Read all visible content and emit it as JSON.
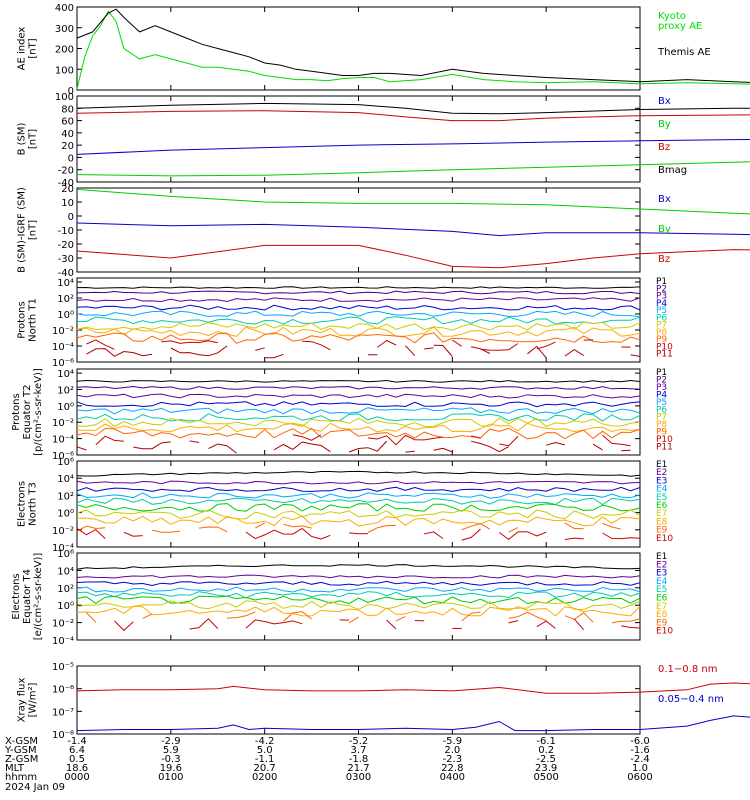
{
  "chart_data": [
    {
      "type": "line",
      "id": "ae",
      "ylabel": [
        "AE index",
        "[nT]"
      ],
      "ylim": [
        0,
        400
      ],
      "ticks": [
        0,
        100,
        200,
        300,
        400
      ],
      "tick_labels": [
        "0",
        "100",
        "200",
        "300",
        "400"
      ],
      "series": [
        {
          "name": "Kyoto proxy AE",
          "legend": [
            "Kyoto",
            "proxy AE"
          ],
          "color": "#00dd00",
          "x": [
            0,
            5,
            10,
            15,
            20,
            25,
            30,
            40,
            50,
            60,
            70,
            80,
            90,
            100,
            110,
            120,
            130,
            140,
            150,
            160,
            170,
            180,
            190,
            200,
            220,
            240,
            260,
            280,
            300,
            330,
            360,
            390,
            420,
            450,
            480,
            510,
            540,
            570,
            600
          ],
          "y": [
            5,
            160,
            260,
            310,
            380,
            330,
            200,
            150,
            170,
            150,
            130,
            110,
            110,
            100,
            90,
            70,
            60,
            50,
            50,
            45,
            55,
            60,
            60,
            40,
            50,
            75,
            50,
            40,
            35,
            40,
            30,
            35,
            30,
            25,
            30,
            35,
            30,
            40,
            25
          ]
        },
        {
          "name": "Themis AE",
          "legend": [
            "Themis AE"
          ],
          "color": "#000000",
          "x": [
            0,
            10,
            20,
            25,
            30,
            40,
            50,
            60,
            70,
            80,
            90,
            100,
            110,
            120,
            130,
            140,
            150,
            160,
            170,
            180,
            190,
            200,
            220,
            240,
            260,
            280,
            300,
            330,
            360,
            390,
            420,
            450,
            480,
            510,
            540,
            570,
            600
          ],
          "y": [
            250,
            280,
            370,
            390,
            350,
            280,
            310,
            280,
            250,
            220,
            200,
            180,
            160,
            130,
            120,
            100,
            90,
            80,
            70,
            70,
            80,
            80,
            70,
            100,
            80,
            70,
            60,
            50,
            40,
            50,
            40,
            30,
            20,
            20,
            25,
            30,
            25
          ]
        }
      ]
    },
    {
      "type": "line",
      "id": "bsm",
      "ylabel": [
        "B (SM)",
        "[nT]"
      ],
      "ylim": [
        -40,
        100
      ],
      "ticks": [
        -40,
        -20,
        0,
        20,
        40,
        60,
        80,
        100
      ],
      "tick_labels": [
        "-40",
        "-20",
        "0",
        "20",
        "40",
        "60",
        "80",
        "100"
      ],
      "series": [
        {
          "name": "Bx",
          "legend": [
            "Bx"
          ],
          "color": "#0000cc",
          "x": [
            0,
            60,
            120,
            180,
            240,
            300,
            360,
            420,
            480,
            540,
            600
          ],
          "y": [
            5,
            12,
            16,
            20,
            22,
            25,
            27,
            29,
            30,
            29,
            28
          ]
        },
        {
          "name": "By",
          "legend": [
            "By"
          ],
          "color": "#00cc00",
          "x": [
            0,
            60,
            120,
            180,
            240,
            300,
            360,
            420,
            480,
            540,
            600
          ],
          "y": [
            -28,
            -30,
            -29,
            -25,
            -20,
            -16,
            -12,
            -8,
            -3,
            3,
            8
          ]
        },
        {
          "name": "Bz",
          "legend": [
            "Bz"
          ],
          "color": "#cc0000",
          "x": [
            0,
            60,
            120,
            180,
            210,
            240,
            270,
            300,
            360,
            420,
            480,
            540,
            600
          ],
          "y": [
            72,
            75,
            76,
            73,
            66,
            60,
            60,
            64,
            68,
            69,
            70,
            70,
            68
          ]
        },
        {
          "name": "Bmag",
          "legend": [
            "Bmag"
          ],
          "color": "#000000",
          "x": [
            0,
            60,
            120,
            180,
            210,
            240,
            270,
            300,
            360,
            420,
            480,
            540,
            600
          ],
          "y": [
            80,
            85,
            88,
            86,
            80,
            72,
            71,
            73,
            78,
            80,
            80,
            79,
            78
          ]
        }
      ]
    },
    {
      "type": "line",
      "id": "bigrf",
      "ylabel": [
        "B (SM)-IGRF (SM)",
        "[nT]"
      ],
      "ylim": [
        -40,
        20
      ],
      "ticks": [
        -40,
        -30,
        -20,
        -10,
        0,
        10,
        20
      ],
      "tick_labels": [
        "-40",
        "-30",
        "-20",
        "-10",
        "0",
        "10",
        "20"
      ],
      "series": [
        {
          "name": "Bx",
          "legend": [
            "Bx"
          ],
          "color": "#0000cc",
          "x": [
            0,
            60,
            120,
            180,
            240,
            270,
            300,
            360,
            420,
            480,
            540,
            600
          ],
          "y": [
            -5,
            -7,
            -6,
            -8,
            -11,
            -14,
            -12,
            -12,
            -13,
            -15,
            -18,
            -19
          ]
        },
        {
          "name": "By",
          "legend": [
            "By"
          ],
          "color": "#00cc00",
          "x": [
            0,
            60,
            120,
            180,
            240,
            300,
            360,
            420,
            480,
            540,
            600
          ],
          "y": [
            19,
            14,
            10,
            9,
            9,
            8,
            5,
            2,
            -1,
            -3,
            -3
          ]
        },
        {
          "name": "Bz",
          "legend": [
            "Bz"
          ],
          "color": "#cc0000",
          "x": [
            0,
            60,
            120,
            180,
            210,
            240,
            270,
            300,
            330,
            360,
            420,
            480,
            540,
            600
          ],
          "y": [
            -25,
            -30,
            -21,
            -21,
            -28,
            -36,
            -37,
            -34,
            -30,
            -27,
            -24,
            -25,
            -28,
            -27
          ]
        }
      ]
    },
    {
      "type": "line",
      "id": "protons_t1",
      "log": true,
      "ylabel": [
        "Protons",
        "North T1"
      ],
      "ylim": [
        -6,
        4.5
      ],
      "ticks": [
        -6,
        -4,
        -2,
        0,
        2,
        4
      ],
      "tick_labels": [
        "10⁻⁶",
        "10⁻⁴",
        "10⁻²",
        "10⁰",
        "10²",
        "10⁴"
      ],
      "levels": [
        3.3,
        2.7,
        1.8,
        0.8,
        0.0,
        -0.8,
        -1.5,
        -2.2,
        -3.0,
        -3.9,
        -4.7
      ],
      "labels": [
        "P1",
        "P2",
        "P3",
        "P4",
        "P5",
        "P6",
        "P7",
        "P8",
        "P9",
        "P10",
        "P11"
      ],
      "colors": [
        "#000000",
        "#440088",
        "#660099",
        "#0000cc",
        "#00aaff",
        "#00ccaa",
        "#cccc00",
        "#ffaa00",
        "#ff6600",
        "#cc0000",
        "#aa0000"
      ]
    },
    {
      "type": "line",
      "id": "protons_t2",
      "log": true,
      "ylabel": [
        "Protons",
        "Equator T2",
        "[p/(cm²-s-sr-keV)]"
      ],
      "ylim": [
        -6,
        4.5
      ],
      "ticks": [
        -6,
        -4,
        -2,
        0,
        2,
        4
      ],
      "tick_labels": [
        "10⁻⁶",
        "10⁻⁴",
        "10⁻²",
        "10⁰",
        "10²",
        "10⁴"
      ],
      "levels": [
        3.0,
        2.2,
        1.2,
        0.2,
        -0.6,
        -1.4,
        -2.0,
        -2.7,
        -3.4,
        -4.2,
        -5.0
      ],
      "labels": [
        "P1",
        "P2",
        "P3",
        "P4",
        "P5",
        "P6",
        "P7",
        "P8",
        "P9",
        "P10",
        "P11"
      ],
      "colors": [
        "#000000",
        "#440088",
        "#660099",
        "#0000cc",
        "#00aaff",
        "#00ccaa",
        "#cccc00",
        "#ffaa00",
        "#ff6600",
        "#cc0000",
        "#aa0000"
      ]
    },
    {
      "type": "line",
      "id": "electrons_t3",
      "log": true,
      "ylabel": [
        "Electrons",
        "North T3"
      ],
      "ylim": [
        -4,
        6
      ],
      "ticks": [
        -4,
        -2,
        0,
        2,
        4,
        6
      ],
      "tick_labels": [
        "10⁻⁴",
        "10⁻²",
        "10⁰",
        "10²",
        "10⁴",
        "10⁶"
      ],
      "levels": [
        4.3,
        3.5,
        2.7,
        2.0,
        1.3,
        0.6,
        -0.2,
        -1.0,
        -1.8,
        -2.5
      ],
      "labels": [
        "E1",
        "E2",
        "E3",
        "E4",
        "E5",
        "E6",
        "E7",
        "E8",
        "E9",
        "E10"
      ],
      "colors": [
        "#000000",
        "#660099",
        "#0000cc",
        "#00aaff",
        "#00ccaa",
        "#00cc00",
        "#cccc00",
        "#ffaa00",
        "#ff6600",
        "#cc0000"
      ]
    },
    {
      "type": "line",
      "id": "electrons_t4",
      "log": true,
      "ylabel": [
        "Electrons",
        "Equator T4",
        "[e/(cm²-s-sr-keV)]"
      ],
      "ylim": [
        -4,
        6
      ],
      "ticks": [
        -4,
        -2,
        0,
        2,
        4,
        6
      ],
      "tick_labels": [
        "10⁻⁴",
        "10⁻²",
        "10⁰",
        "10²",
        "10⁴",
        "10⁶"
      ],
      "levels": [
        4.2,
        3.3,
        2.5,
        1.8,
        1.2,
        0.6,
        0.0,
        -0.7,
        -1.4,
        -2.2
      ],
      "labels": [
        "E1",
        "E2",
        "E3",
        "E4",
        "E5",
        "E6",
        "E7",
        "E8",
        "E9",
        "E10"
      ],
      "colors": [
        "#000000",
        "#660099",
        "#0000cc",
        "#00aaff",
        "#00ccaa",
        "#00cc00",
        "#cccc00",
        "#ffaa00",
        "#ff6600",
        "#cc0000"
      ]
    },
    {
      "type": "line",
      "id": "xray",
      "log": true,
      "ylabel": [
        "Xray flux",
        "[W/m²]"
      ],
      "ylim": [
        -8,
        -5
      ],
      "ticks": [
        -8,
        -7,
        -6,
        -5
      ],
      "tick_labels": [
        "10⁻⁸",
        "10⁻⁷",
        "10⁻⁶",
        "10⁻⁵"
      ],
      "series": [
        {
          "name": "0.1-0.8 nm",
          "legend": [
            "0.1−0.8 nm"
          ],
          "color": "#cc0000",
          "x": [
            0,
            30,
            60,
            90,
            100,
            120,
            150,
            180,
            210,
            240,
            270,
            300,
            330,
            360,
            390,
            405,
            420,
            450,
            480,
            510,
            540,
            570,
            600
          ],
          "y": [
            -6.1,
            -6.05,
            -6.05,
            -6.0,
            -5.9,
            -6.05,
            -6.1,
            -6.1,
            -6.05,
            -6.1,
            -5.95,
            -6.2,
            -6.2,
            -6.15,
            -6.05,
            -5.8,
            -5.75,
            -5.85,
            -5.95,
            -6.0,
            -6.0,
            -6.05,
            -6.0
          ]
        },
        {
          "name": "0.05-0.4 nm",
          "legend": [
            "0.05−0.4 nm"
          ],
          "color": "#0000cc",
          "x": [
            0,
            30,
            60,
            90,
            100,
            110,
            120,
            150,
            180,
            210,
            240,
            255,
            270,
            280,
            300,
            330,
            360,
            390,
            405,
            420,
            450,
            480,
            510,
            540,
            570,
            585,
            600
          ],
          "y": [
            -7.85,
            -7.8,
            -7.8,
            -7.75,
            -7.6,
            -7.8,
            -7.75,
            -7.8,
            -7.8,
            -7.75,
            -7.8,
            -7.7,
            -7.45,
            -7.85,
            -7.85,
            -7.8,
            -7.8,
            -7.65,
            -7.4,
            -7.2,
            -7.35,
            -7.5,
            -7.7,
            -7.8,
            -7.85,
            -7.7,
            -7.8
          ]
        }
      ]
    }
  ],
  "x_axis": {
    "rows": [
      {
        "label": "X-GSM",
        "values": [
          "-1.4",
          "-2.9",
          "-4.2",
          "-5.2",
          "-5.9",
          "-6.1",
          "-6.0"
        ]
      },
      {
        "label": "Y-GSM",
        "values": [
          "6.4",
          "5.9",
          "5.0",
          "3.7",
          "2.0",
          "0.2",
          "-1.6"
        ]
      },
      {
        "label": "Z-GSM",
        "values": [
          "0.5",
          "-0.3",
          "-1.1",
          "-1.8",
          "-2.3",
          "-2.5",
          "-2.4"
        ]
      },
      {
        "label": "MLT",
        "values": [
          "18.6",
          "19.6",
          "20.7",
          "21.7",
          "22.8",
          "23.9",
          "1.0"
        ]
      },
      {
        "label": "hhmm",
        "values": [
          "0000",
          "0100",
          "0200",
          "0300",
          "0400",
          "0500",
          "0600"
        ]
      }
    ],
    "date": "2024 Jan 09"
  }
}
